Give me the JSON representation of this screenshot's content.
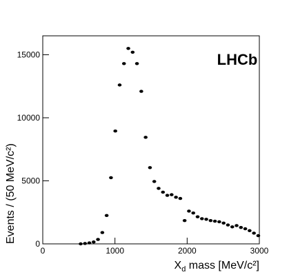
{
  "chart_data": {
    "type": "scatter",
    "annotation": "LHCb",
    "y_label": "Events / (50 MeV/c²)",
    "x_label": {
      "symbol": "X",
      "subscript": "d",
      "text": " mass [MeV/c²]"
    },
    "x": [
      525,
      585,
      645,
      705,
      765,
      825,
      885,
      945,
      1005,
      1065,
      1125,
      1185,
      1245,
      1305,
      1365,
      1425,
      1485,
      1545,
      1605,
      1665,
      1725,
      1785,
      1845,
      1905,
      1965,
      2025,
      2085,
      2145,
      2205,
      2265,
      2325,
      2385,
      2445,
      2505,
      2565,
      2625,
      2685,
      2745,
      2805,
      2865,
      2925,
      2985
    ],
    "values": [
      0,
      30,
      80,
      150,
      350,
      900,
      2250,
      5250,
      8950,
      12600,
      14300,
      15500,
      15200,
      14300,
      12100,
      8450,
      6050,
      4950,
      4400,
      4100,
      3850,
      3900,
      3700,
      3600,
      1850,
      2600,
      2450,
      2150,
      2000,
      1950,
      1850,
      1800,
      1750,
      1650,
      1500,
      1350,
      1450,
      1300,
      1200,
      1050,
      850,
      650
    ],
    "color": "#000000",
    "xlim": [
      0,
      3000
    ],
    "xticks": [
      0,
      1000,
      2000,
      3000
    ],
    "ylim": [
      0,
      16500
    ],
    "yticks": [
      0,
      5000,
      10000,
      15000
    ]
  }
}
